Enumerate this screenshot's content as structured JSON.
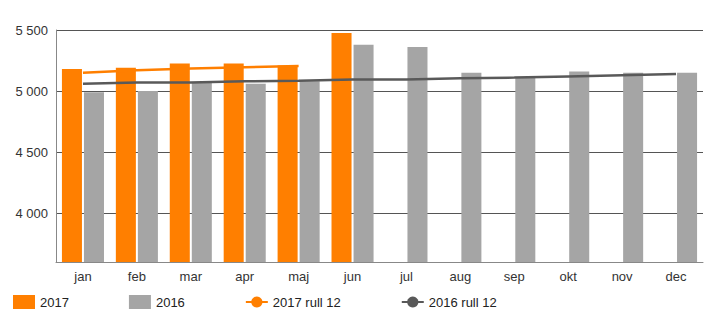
{
  "chart_data": {
    "type": "bar",
    "categories": [
      "jan",
      "feb",
      "mar",
      "apr",
      "maj",
      "jun",
      "jul",
      "aug",
      "sep",
      "okt",
      "nov",
      "dec"
    ],
    "series": [
      {
        "name": "2017",
        "type": "bar",
        "color": "#ff7f00",
        "values": [
          5180,
          5190,
          5225,
          5225,
          5210,
          5475,
          null,
          null,
          null,
          null,
          null,
          null
        ]
      },
      {
        "name": "2016",
        "type": "bar",
        "color": "#a5a5a5",
        "values": [
          4990,
          5000,
          5070,
          5060,
          5080,
          5380,
          5360,
          5150,
          5110,
          5160,
          5150,
          5150
        ]
      },
      {
        "name": "2017 rull 12",
        "type": "line",
        "color": "#ff7f00",
        "values": [
          5150,
          5170,
          5185,
          5195,
          5205,
          null,
          null,
          null,
          null,
          null,
          null,
          null
        ]
      },
      {
        "name": "2016 rull 12",
        "type": "line",
        "color": "#595959",
        "values": [
          5060,
          5070,
          5070,
          5080,
          5085,
          5095,
          5095,
          5105,
          5110,
          5120,
          5130,
          5140
        ]
      }
    ],
    "ylim": [
      3600,
      5500
    ],
    "yticks": [
      {
        "value": 4000,
        "label": "4 000"
      },
      {
        "value": 4500,
        "label": "4 500"
      },
      {
        "value": 5000,
        "label": "5 000"
      },
      {
        "value": 5500,
        "label": "5 500"
      }
    ],
    "grid": true,
    "legend": "bottom"
  }
}
